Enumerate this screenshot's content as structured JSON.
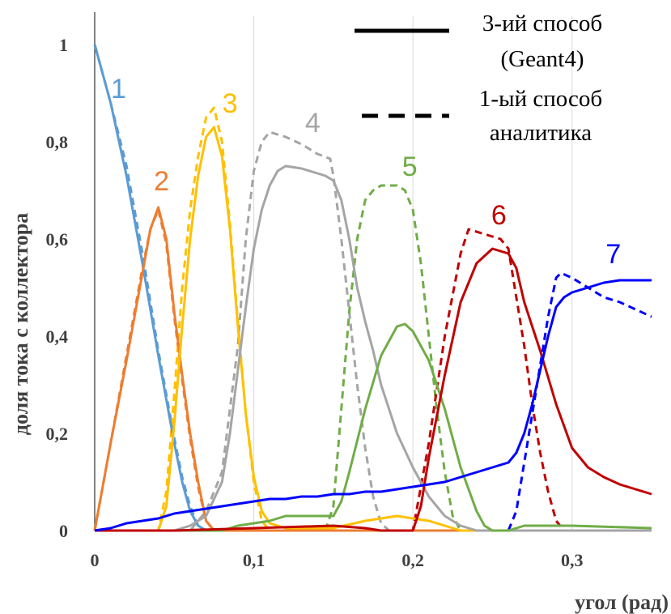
{
  "chart_data": {
    "type": "line",
    "xlabel": "угол (рад)",
    "ylabel": "доля тока с коллектора",
    "xlim": [
      0,
      0.35
    ],
    "ylim": [
      0,
      1.05
    ],
    "x_ticks": [
      0,
      0.1,
      0.2,
      0.3
    ],
    "x_tick_labels": [
      "0",
      "0,1",
      "0,2",
      "0,3"
    ],
    "y_ticks": [
      0,
      0.2,
      0.4,
      0.6,
      0.8,
      1.0
    ],
    "y_tick_labels": [
      "0",
      "0,2",
      "0,4",
      "0,6",
      "0,8",
      "1"
    ],
    "grid": "vertical",
    "legend": {
      "position": "top-right",
      "entries": [
        {
          "style": "solid",
          "line1": "3-ий способ",
          "line2": "(Geant4)"
        },
        {
          "style": "dashed",
          "line1": "1-ый способ",
          "line2": "аналитика"
        }
      ]
    },
    "series": [
      {
        "label": "1",
        "color": "#5b9bd5",
        "solid": [
          [
            0,
            1.0
          ],
          [
            0.01,
            0.88
          ],
          [
            0.02,
            0.73
          ],
          [
            0.03,
            0.55
          ],
          [
            0.04,
            0.36
          ],
          [
            0.05,
            0.18
          ],
          [
            0.055,
            0.1
          ],
          [
            0.06,
            0.04
          ],
          [
            0.065,
            0.01
          ],
          [
            0.07,
            0.0
          ],
          [
            0.35,
            0.0
          ]
        ],
        "dashed": [
          [
            0,
            1.0
          ],
          [
            0.01,
            0.88
          ],
          [
            0.02,
            0.75
          ],
          [
            0.03,
            0.57
          ],
          [
            0.04,
            0.37
          ],
          [
            0.05,
            0.19
          ],
          [
            0.055,
            0.11
          ],
          [
            0.06,
            0.05
          ],
          [
            0.065,
            0.01
          ],
          [
            0.07,
            0.0
          ]
        ]
      },
      {
        "label": "2",
        "color": "#ed7d31",
        "solid": [
          [
            0,
            0
          ],
          [
            0.01,
            0.18
          ],
          [
            0.02,
            0.35
          ],
          [
            0.03,
            0.53
          ],
          [
            0.035,
            0.62
          ],
          [
            0.04,
            0.665
          ],
          [
            0.045,
            0.6
          ],
          [
            0.05,
            0.45
          ],
          [
            0.055,
            0.32
          ],
          [
            0.06,
            0.2
          ],
          [
            0.065,
            0.1
          ],
          [
            0.07,
            0.02
          ],
          [
            0.075,
            0.0
          ],
          [
            0.35,
            0.0
          ]
        ],
        "dashed": [
          [
            0,
            0
          ],
          [
            0.01,
            0.18
          ],
          [
            0.02,
            0.36
          ],
          [
            0.03,
            0.54
          ],
          [
            0.035,
            0.62
          ],
          [
            0.04,
            0.66
          ],
          [
            0.045,
            0.59
          ],
          [
            0.05,
            0.44
          ],
          [
            0.055,
            0.31
          ],
          [
            0.06,
            0.19
          ],
          [
            0.065,
            0.09
          ],
          [
            0.07,
            0.02
          ],
          [
            0.075,
            0.0
          ]
        ]
      },
      {
        "label": "3",
        "color": "#ffc000",
        "solid": [
          [
            0,
            0
          ],
          [
            0.04,
            0
          ],
          [
            0.045,
            0.05
          ],
          [
            0.05,
            0.22
          ],
          [
            0.055,
            0.42
          ],
          [
            0.06,
            0.6
          ],
          [
            0.065,
            0.73
          ],
          [
            0.07,
            0.81
          ],
          [
            0.075,
            0.83
          ],
          [
            0.08,
            0.77
          ],
          [
            0.085,
            0.62
          ],
          [
            0.09,
            0.42
          ],
          [
            0.095,
            0.24
          ],
          [
            0.1,
            0.11
          ],
          [
            0.105,
            0.04
          ],
          [
            0.11,
            0.015
          ],
          [
            0.12,
            0.005
          ],
          [
            0.15,
            0.005
          ],
          [
            0.17,
            0.02
          ],
          [
            0.18,
            0.025
          ],
          [
            0.19,
            0.03
          ],
          [
            0.2,
            0.025
          ],
          [
            0.21,
            0.02
          ],
          [
            0.22,
            0.01
          ],
          [
            0.23,
            0.0
          ],
          [
            0.35,
            0.0
          ]
        ],
        "dashed": [
          [
            0,
            0
          ],
          [
            0.04,
            0
          ],
          [
            0.045,
            0.08
          ],
          [
            0.05,
            0.28
          ],
          [
            0.055,
            0.5
          ],
          [
            0.06,
            0.66
          ],
          [
            0.065,
            0.77
          ],
          [
            0.07,
            0.85
          ],
          [
            0.075,
            0.87
          ],
          [
            0.08,
            0.8
          ],
          [
            0.085,
            0.63
          ],
          [
            0.09,
            0.43
          ],
          [
            0.095,
            0.24
          ],
          [
            0.1,
            0.1
          ],
          [
            0.105,
            0.02
          ],
          [
            0.11,
            0.0
          ]
        ]
      },
      {
        "label": "4",
        "color": "#a5a5a5",
        "solid": [
          [
            0,
            0
          ],
          [
            0.05,
            0.0
          ],
          [
            0.06,
            0.01
          ],
          [
            0.07,
            0.03
          ],
          [
            0.08,
            0.1
          ],
          [
            0.085,
            0.2
          ],
          [
            0.09,
            0.33
          ],
          [
            0.095,
            0.46
          ],
          [
            0.1,
            0.58
          ],
          [
            0.105,
            0.66
          ],
          [
            0.11,
            0.71
          ],
          [
            0.115,
            0.74
          ],
          [
            0.12,
            0.75
          ],
          [
            0.13,
            0.745
          ],
          [
            0.14,
            0.735
          ],
          [
            0.145,
            0.73
          ],
          [
            0.15,
            0.72
          ],
          [
            0.155,
            0.68
          ],
          [
            0.16,
            0.6
          ],
          [
            0.165,
            0.5
          ],
          [
            0.17,
            0.43
          ],
          [
            0.175,
            0.37
          ],
          [
            0.18,
            0.3
          ],
          [
            0.19,
            0.2
          ],
          [
            0.2,
            0.13
          ],
          [
            0.21,
            0.07
          ],
          [
            0.22,
            0.03
          ],
          [
            0.23,
            0.01
          ],
          [
            0.24,
            0.0
          ],
          [
            0.35,
            0.0
          ]
        ],
        "dashed": [
          [
            0,
            0
          ],
          [
            0.06,
            0.0
          ],
          [
            0.07,
            0.04
          ],
          [
            0.08,
            0.12
          ],
          [
            0.09,
            0.38
          ],
          [
            0.095,
            0.6
          ],
          [
            0.1,
            0.74
          ],
          [
            0.105,
            0.8
          ],
          [
            0.11,
            0.82
          ],
          [
            0.12,
            0.81
          ],
          [
            0.13,
            0.795
          ],
          [
            0.14,
            0.775
          ],
          [
            0.148,
            0.765
          ],
          [
            0.15,
            0.73
          ],
          [
            0.155,
            0.6
          ],
          [
            0.16,
            0.45
          ],
          [
            0.165,
            0.3
          ],
          [
            0.17,
            0.17
          ],
          [
            0.175,
            0.07
          ],
          [
            0.18,
            0.015
          ],
          [
            0.185,
            0.0
          ]
        ]
      },
      {
        "label": "5",
        "color": "#70ad47",
        "solid": [
          [
            0,
            0
          ],
          [
            0.08,
            0.0
          ],
          [
            0.09,
            0.01
          ],
          [
            0.1,
            0.015
          ],
          [
            0.11,
            0.02
          ],
          [
            0.12,
            0.03
          ],
          [
            0.13,
            0.03
          ],
          [
            0.14,
            0.03
          ],
          [
            0.15,
            0.03
          ],
          [
            0.155,
            0.06
          ],
          [
            0.16,
            0.12
          ],
          [
            0.17,
            0.25
          ],
          [
            0.18,
            0.36
          ],
          [
            0.19,
            0.42
          ],
          [
            0.195,
            0.425
          ],
          [
            0.2,
            0.41
          ],
          [
            0.21,
            0.35
          ],
          [
            0.22,
            0.25
          ],
          [
            0.23,
            0.13
          ],
          [
            0.24,
            0.04
          ],
          [
            0.245,
            0.01
          ],
          [
            0.25,
            0.0
          ],
          [
            0.26,
            0.0
          ],
          [
            0.27,
            0.01
          ],
          [
            0.28,
            0.01
          ],
          [
            0.29,
            0.01
          ],
          [
            0.3,
            0.01
          ],
          [
            0.35,
            0.005
          ]
        ],
        "dashed": [
          [
            0,
            0
          ],
          [
            0.13,
            0.0
          ],
          [
            0.145,
            0.0
          ],
          [
            0.15,
            0.05
          ],
          [
            0.155,
            0.25
          ],
          [
            0.16,
            0.45
          ],
          [
            0.165,
            0.6
          ],
          [
            0.17,
            0.68
          ],
          [
            0.175,
            0.7
          ],
          [
            0.18,
            0.71
          ],
          [
            0.19,
            0.71
          ],
          [
            0.195,
            0.7
          ],
          [
            0.2,
            0.66
          ],
          [
            0.205,
            0.55
          ],
          [
            0.21,
            0.4
          ],
          [
            0.215,
            0.25
          ],
          [
            0.22,
            0.12
          ],
          [
            0.225,
            0.03
          ],
          [
            0.23,
            0.0
          ]
        ]
      },
      {
        "label": "6",
        "color": "#c00000",
        "solid": [
          [
            0,
            0
          ],
          [
            0.05,
            0.0
          ],
          [
            0.1,
            0.005
          ],
          [
            0.15,
            0.01
          ],
          [
            0.17,
            0.005
          ],
          [
            0.18,
            0.0
          ],
          [
            0.2,
            0.0
          ],
          [
            0.205,
            0.05
          ],
          [
            0.21,
            0.15
          ],
          [
            0.22,
            0.32
          ],
          [
            0.23,
            0.47
          ],
          [
            0.24,
            0.55
          ],
          [
            0.25,
            0.58
          ],
          [
            0.26,
            0.57
          ],
          [
            0.265,
            0.54
          ],
          [
            0.27,
            0.47
          ],
          [
            0.28,
            0.37
          ],
          [
            0.29,
            0.26
          ],
          [
            0.3,
            0.17
          ],
          [
            0.31,
            0.13
          ],
          [
            0.32,
            0.11
          ],
          [
            0.33,
            0.095
          ],
          [
            0.34,
            0.085
          ],
          [
            0.35,
            0.075
          ]
        ],
        "dashed": [
          [
            0,
            0
          ],
          [
            0.19,
            0.0
          ],
          [
            0.2,
            0.0
          ],
          [
            0.21,
            0.18
          ],
          [
            0.22,
            0.4
          ],
          [
            0.23,
            0.57
          ],
          [
            0.235,
            0.62
          ],
          [
            0.245,
            0.61
          ],
          [
            0.255,
            0.6
          ],
          [
            0.26,
            0.58
          ],
          [
            0.265,
            0.48
          ],
          [
            0.27,
            0.38
          ],
          [
            0.275,
            0.26
          ],
          [
            0.28,
            0.16
          ],
          [
            0.285,
            0.08
          ],
          [
            0.29,
            0.02
          ],
          [
            0.295,
            0.0
          ]
        ]
      },
      {
        "label": "7",
        "color": "#0000ff",
        "solid": [
          [
            0,
            0
          ],
          [
            0.01,
            0.005
          ],
          [
            0.02,
            0.015
          ],
          [
            0.03,
            0.02
          ],
          [
            0.04,
            0.025
          ],
          [
            0.05,
            0.035
          ],
          [
            0.06,
            0.04
          ],
          [
            0.07,
            0.045
          ],
          [
            0.08,
            0.05
          ],
          [
            0.09,
            0.055
          ],
          [
            0.1,
            0.06
          ],
          [
            0.11,
            0.065
          ],
          [
            0.12,
            0.065
          ],
          [
            0.13,
            0.07
          ],
          [
            0.14,
            0.07
          ],
          [
            0.15,
            0.075
          ],
          [
            0.16,
            0.075
          ],
          [
            0.17,
            0.08
          ],
          [
            0.18,
            0.08
          ],
          [
            0.19,
            0.085
          ],
          [
            0.2,
            0.09
          ],
          [
            0.21,
            0.095
          ],
          [
            0.22,
            0.1
          ],
          [
            0.23,
            0.11
          ],
          [
            0.24,
            0.12
          ],
          [
            0.25,
            0.13
          ],
          [
            0.26,
            0.14
          ],
          [
            0.265,
            0.16
          ],
          [
            0.27,
            0.2
          ],
          [
            0.275,
            0.26
          ],
          [
            0.28,
            0.33
          ],
          [
            0.285,
            0.4
          ],
          [
            0.29,
            0.46
          ],
          [
            0.295,
            0.48
          ],
          [
            0.3,
            0.49
          ],
          [
            0.31,
            0.5
          ],
          [
            0.32,
            0.51
          ],
          [
            0.33,
            0.515
          ],
          [
            0.34,
            0.515
          ],
          [
            0.35,
            0.515
          ]
        ],
        "dashed": [
          [
            0.26,
            0.0
          ],
          [
            0.265,
            0.04
          ],
          [
            0.27,
            0.14
          ],
          [
            0.275,
            0.24
          ],
          [
            0.28,
            0.34
          ],
          [
            0.285,
            0.44
          ],
          [
            0.29,
            0.52
          ],
          [
            0.293,
            0.53
          ],
          [
            0.3,
            0.52
          ],
          [
            0.31,
            0.5
          ],
          [
            0.32,
            0.48
          ],
          [
            0.33,
            0.47
          ],
          [
            0.34,
            0.455
          ],
          [
            0.35,
            0.44
          ]
        ]
      }
    ],
    "curve_label_positions": [
      {
        "label": "1",
        "x": 0.015,
        "y": 0.89
      },
      {
        "label": "2",
        "x": 0.042,
        "y": 0.7
      },
      {
        "label": "3",
        "x": 0.085,
        "y": 0.86
      },
      {
        "label": "4",
        "x": 0.137,
        "y": 0.82
      },
      {
        "label": "5",
        "x": 0.198,
        "y": 0.73
      },
      {
        "label": "6",
        "x": 0.254,
        "y": 0.63
      },
      {
        "label": "7",
        "x": 0.326,
        "y": 0.55
      }
    ]
  }
}
